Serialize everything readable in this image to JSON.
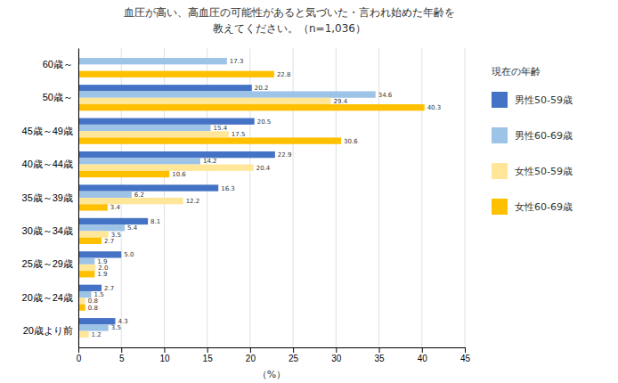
{
  "chart_data": {
    "type": "bar",
    "orientation": "horizontal",
    "title": "血圧が高い、高血圧の可能性があると気づいた・言われ始めた年齢を",
    "subtitle": "教えてください。（n=1,036）",
    "categories": [
      "20歳より前",
      "20歳～24歳",
      "25歳～29歳",
      "30歳～34歳",
      "35歳～39歳",
      "40歳～44歳",
      "45歳～49歳",
      "50歳～",
      "60歳～"
    ],
    "series": [
      {
        "name": "男性50-59歳",
        "color": "#4472C4",
        "values": [
          4.3,
          2.7,
          5.0,
          8.1,
          16.3,
          22.9,
          20.5,
          20.2,
          0.0
        ],
        "value_labels": [
          "4.3",
          "2.7",
          "5.0",
          "8.1",
          "16.3",
          "22.9",
          "20.5",
          "20.2",
          null
        ]
      },
      {
        "name": "男性60-69歳",
        "color": "#9DC3E6",
        "values": [
          3.5,
          1.5,
          1.9,
          5.4,
          6.2,
          14.2,
          15.4,
          34.6,
          17.3
        ],
        "value_labels": [
          "3.5",
          "1.5",
          "1.9",
          "5.4",
          "6.2",
          "14.2",
          "15.4",
          "34.6",
          "17.3"
        ]
      },
      {
        "name": "女性50-59歳",
        "color": "#FFE699",
        "values": [
          1.2,
          0.8,
          2.0,
          3.5,
          12.2,
          20.4,
          17.5,
          29.4,
          0.0
        ],
        "value_labels": [
          "1.2",
          "0.8",
          "2.0",
          "3.5",
          "12.2",
          "20.4",
          "17.5",
          "29.4",
          null
        ]
      },
      {
        "name": "女性60-69歳",
        "color": "#FFC000",
        "values": [
          0.0,
          0.8,
          1.9,
          2.7,
          3.4,
          10.6,
          30.6,
          40.3,
          22.8
        ],
        "value_labels": [
          null,
          "0.8",
          "1.9",
          "2.7",
          "3.4",
          "10.6",
          "30.6",
          "40.3",
          "22.8"
        ]
      }
    ],
    "xlabel": "（%）",
    "xlim": [
      0,
      45
    ],
    "xticks": [
      0,
      5,
      10,
      15,
      20,
      25,
      30,
      35,
      40,
      45
    ],
    "grid": true,
    "data_labels": true,
    "legend": "right",
    "legend_title": "現在の年齢"
  }
}
